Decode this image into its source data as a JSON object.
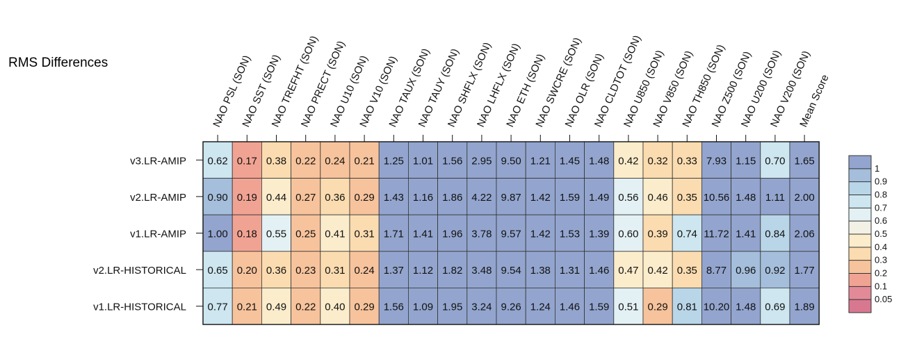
{
  "chart_data": {
    "type": "heatmap",
    "title": "RMS Differences",
    "columns": [
      "NAO PSL (SON)",
      "NAO SST (SON)",
      "NAO TREFHT (SON)",
      "NAO PRECT (SON)",
      "NAO U10 (SON)",
      "NAO V10 (SON)",
      "NAO TAUX (SON)",
      "NAO TAUY (SON)",
      "NAO SHFLX (SON)",
      "NAO LHFLX (SON)",
      "NAO ETH (SON)",
      "NAO SWCRE (SON)",
      "NAO OLR (SON)",
      "NAO CLDTOT (SON)",
      "NAO U850 (SON)",
      "NAO V850 (SON)",
      "NAO TH850 (SON)",
      "NAO Z500 (SON)",
      "NAO U200 (SON)",
      "NAO V200 (SON)",
      "Mean Score"
    ],
    "rows": [
      "v3.LR-AMIP",
      "v2.LR-AMIP",
      "v1.LR-AMIP",
      "v2.LR-HISTORICAL",
      "v1.LR-HISTORICAL"
    ],
    "values": [
      [
        0.62,
        0.17,
        0.38,
        0.22,
        0.24,
        0.21,
        1.25,
        1.01,
        1.56,
        2.95,
        9.5,
        1.21,
        1.45,
        1.48,
        0.42,
        0.32,
        0.33,
        7.93,
        1.15,
        0.7,
        1.65
      ],
      [
        0.9,
        0.19,
        0.44,
        0.27,
        0.36,
        0.29,
        1.43,
        1.16,
        1.86,
        4.22,
        9.87,
        1.42,
        1.59,
        1.49,
        0.56,
        0.46,
        0.35,
        10.56,
        1.48,
        1.11,
        2.0
      ],
      [
        1.0,
        0.18,
        0.55,
        0.25,
        0.41,
        0.31,
        1.71,
        1.41,
        1.96,
        3.78,
        9.57,
        1.42,
        1.53,
        1.39,
        0.6,
        0.39,
        0.74,
        11.72,
        1.41,
        0.84,
        2.06
      ],
      [
        0.65,
        0.2,
        0.36,
        0.23,
        0.31,
        0.24,
        1.37,
        1.12,
        1.82,
        3.48,
        9.54,
        1.38,
        1.31,
        1.46,
        0.47,
        0.42,
        0.35,
        8.77,
        0.96,
        0.92,
        1.77
      ],
      [
        0.77,
        0.21,
        0.49,
        0.22,
        0.4,
        0.29,
        1.56,
        1.09,
        1.95,
        3.24,
        9.26,
        1.24,
        1.46,
        1.59,
        0.51,
        0.29,
        0.81,
        10.2,
        1.48,
        0.69,
        1.89
      ]
    ],
    "legend": {
      "ticks": [
        "1",
        "0.9",
        "0.8",
        "0.7",
        "0.6",
        "0.5",
        "0.4",
        "0.3",
        "0.2",
        "0.1",
        "0.05"
      ],
      "colors": [
        "#93a5ce",
        "#a4bedb",
        "#b9d6e8",
        "#cde6f0",
        "#e3f0f4",
        "#f3f1e6",
        "#fbeccb",
        "#fbdcb0",
        "#f7c39c",
        "#f1a393",
        "#e38a98",
        "#d87890"
      ]
    }
  }
}
